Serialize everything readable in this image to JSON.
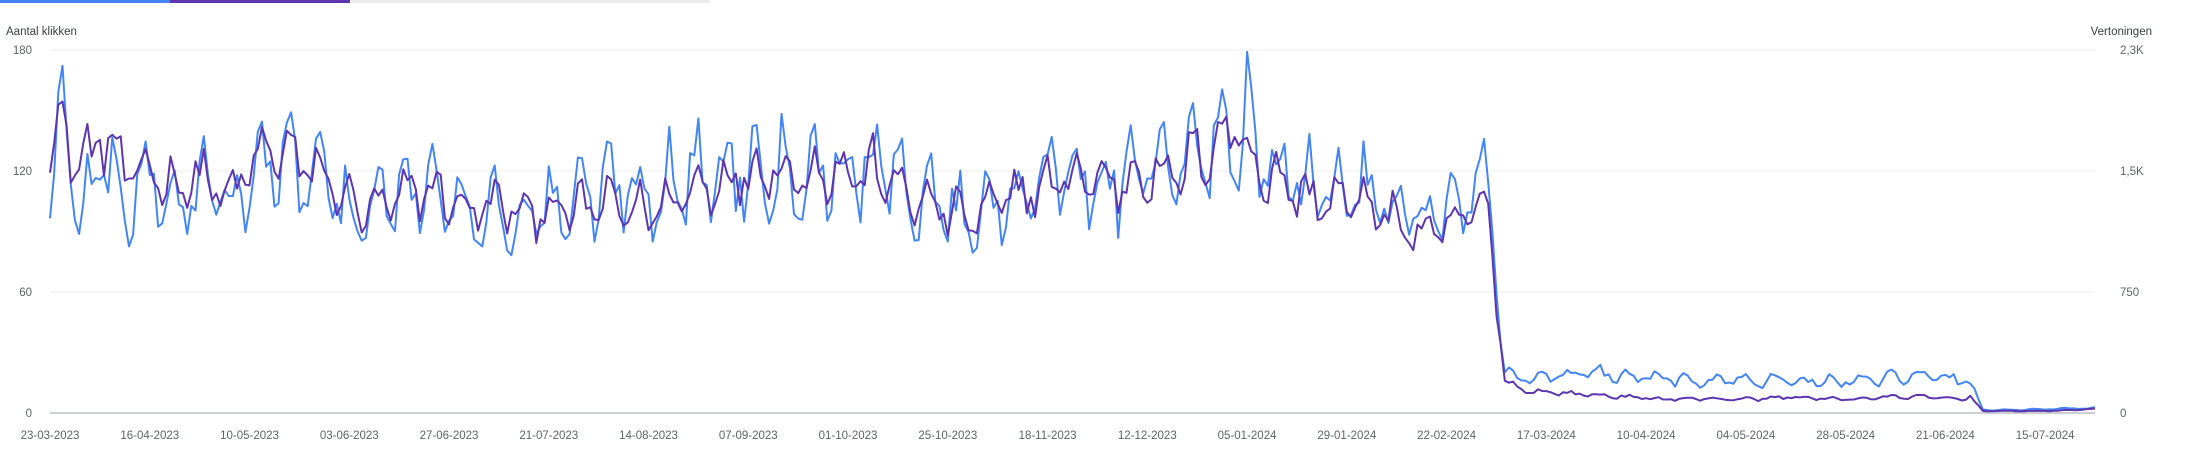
{
  "chart_data": {
    "type": "line",
    "ylabel_left": "Aantal klikken",
    "ylabel_right": "Vertoningen",
    "ylim_left": [
      0,
      180
    ],
    "ylim_right": [
      0,
      2300
    ],
    "yticks_left": [
      "0",
      "60",
      "120",
      "180"
    ],
    "yticks_right": [
      "0",
      "750",
      "1,5K",
      "2,3K"
    ],
    "x_tick_labels": [
      "23-03-2023",
      "16-04-2023",
      "10-05-2023",
      "03-06-2023",
      "27-06-2023",
      "21-07-2023",
      "14-08-2023",
      "07-09-2023",
      "01-10-2023",
      "25-10-2023",
      "18-11-2023",
      "12-12-2023",
      "05-01-2024",
      "29-01-2024",
      "22-02-2024",
      "17-03-2024",
      "10-04-2024",
      "04-05-2024",
      "28-05-2024",
      "21-06-2024",
      "15-07-2024"
    ],
    "x_start": "2023-03-23",
    "x_end": "2024-07-27",
    "grid": true,
    "series": [
      {
        "name": "Aantal klikken",
        "axis": "left",
        "color": "#5e35b1",
        "anchors": [
          [
            "2023-03-23",
            128
          ],
          [
            "2023-03-26",
            146
          ],
          [
            "2023-03-30",
            120
          ],
          [
            "2023-04-04",
            138
          ],
          [
            "2023-04-12",
            116
          ],
          [
            "2023-04-16",
            122
          ],
          [
            "2023-04-22",
            112
          ],
          [
            "2023-04-28",
            118
          ],
          [
            "2023-05-05",
            106
          ],
          [
            "2023-05-10",
            122
          ],
          [
            "2023-05-16",
            132
          ],
          [
            "2023-05-22",
            124
          ],
          [
            "2023-05-28",
            118
          ],
          [
            "2023-06-03",
            104
          ],
          [
            "2023-06-09",
            100
          ],
          [
            "2023-06-15",
            106
          ],
          [
            "2023-06-21",
            112
          ],
          [
            "2023-06-27",
            106
          ],
          [
            "2023-07-03",
            100
          ],
          [
            "2023-07-09",
            104
          ],
          [
            "2023-07-15",
            98
          ],
          [
            "2023-07-21",
            102
          ],
          [
            "2023-07-27",
            100
          ],
          [
            "2023-08-02",
            104
          ],
          [
            "2023-08-08",
            102
          ],
          [
            "2023-08-14",
            100
          ],
          [
            "2023-08-20",
            106
          ],
          [
            "2023-08-26",
            112
          ],
          [
            "2023-09-01",
            116
          ],
          [
            "2023-09-07",
            118
          ],
          [
            "2023-09-13",
            124
          ],
          [
            "2023-09-19",
            116
          ],
          [
            "2023-09-25",
            122
          ],
          [
            "2023-10-01",
            118
          ],
          [
            "2023-10-07",
            120
          ],
          [
            "2023-10-13",
            112
          ],
          [
            "2023-10-19",
            104
          ],
          [
            "2023-10-25",
            100
          ],
          [
            "2023-10-31",
            96
          ],
          [
            "2023-11-06",
            104
          ],
          [
            "2023-11-12",
            110
          ],
          [
            "2023-11-18",
            112
          ],
          [
            "2023-11-24",
            118
          ],
          [
            "2023-11-30",
            116
          ],
          [
            "2023-12-06",
            114
          ],
          [
            "2023-12-12",
            120
          ],
          [
            "2023-12-18",
            116
          ],
          [
            "2023-12-24",
            128
          ],
          [
            "2023-12-30",
            136
          ],
          [
            "2024-01-03",
            144
          ],
          [
            "2024-01-05",
            130
          ],
          [
            "2024-01-09",
            118
          ],
          [
            "2024-01-14",
            114
          ],
          [
            "2024-01-20",
            106
          ],
          [
            "2024-01-26",
            106
          ],
          [
            "2024-02-01",
            104
          ],
          [
            "2024-02-07",
            100
          ],
          [
            "2024-02-13",
            90
          ],
          [
            "2024-02-19",
            88
          ],
          [
            "2024-02-24",
            94
          ],
          [
            "2024-03-01",
            102
          ],
          [
            "2024-03-03",
            98
          ],
          [
            "2024-03-07",
            16
          ],
          [
            "2024-03-12",
            11
          ],
          [
            "2024-03-20",
            10
          ],
          [
            "2024-03-28",
            9
          ],
          [
            "2024-04-05",
            8
          ],
          [
            "2024-04-13",
            7
          ],
          [
            "2024-04-21",
            7
          ],
          [
            "2024-04-29",
            7
          ],
          [
            "2024-05-07",
            7
          ],
          [
            "2024-05-15",
            8
          ],
          [
            "2024-05-23",
            7
          ],
          [
            "2024-05-31",
            7
          ],
          [
            "2024-06-08",
            8
          ],
          [
            "2024-06-16",
            8
          ],
          [
            "2024-06-24",
            7
          ],
          [
            "2024-06-27",
            8
          ],
          [
            "2024-06-30",
            1
          ],
          [
            "2024-07-08",
            1
          ],
          [
            "2024-07-16",
            1
          ],
          [
            "2024-07-27",
            2
          ]
        ]
      },
      {
        "name": "Vertoningen",
        "axis": "right",
        "color": "#4285f4",
        "anchors": [
          [
            "2023-03-23",
            1220
          ],
          [
            "2023-03-26",
            1980
          ],
          [
            "2023-03-30",
            1200
          ],
          [
            "2023-04-04",
            1620
          ],
          [
            "2023-04-12",
            1300
          ],
          [
            "2023-04-16",
            1540
          ],
          [
            "2023-04-22",
            1280
          ],
          [
            "2023-04-28",
            1460
          ],
          [
            "2023-05-05",
            1300
          ],
          [
            "2023-05-10",
            1480
          ],
          [
            "2023-05-16",
            1600
          ],
          [
            "2023-05-22",
            1520
          ],
          [
            "2023-05-28",
            1480
          ],
          [
            "2023-06-03",
            1260
          ],
          [
            "2023-06-09",
            1300
          ],
          [
            "2023-06-15",
            1380
          ],
          [
            "2023-06-21",
            1420
          ],
          [
            "2023-06-27",
            1360
          ],
          [
            "2023-07-03",
            1300
          ],
          [
            "2023-07-09",
            1280
          ],
          [
            "2023-07-15",
            1240
          ],
          [
            "2023-07-21",
            1300
          ],
          [
            "2023-07-27",
            1320
          ],
          [
            "2023-08-02",
            1420
          ],
          [
            "2023-08-08",
            1460
          ],
          [
            "2023-08-14",
            1400
          ],
          [
            "2023-08-20",
            1480
          ],
          [
            "2023-08-26",
            1500
          ],
          [
            "2023-09-01",
            1540
          ],
          [
            "2023-09-07",
            1560
          ],
          [
            "2023-09-13",
            1600
          ],
          [
            "2023-09-19",
            1520
          ],
          [
            "2023-09-25",
            1560
          ],
          [
            "2023-10-01",
            1540
          ],
          [
            "2023-10-07",
            1580
          ],
          [
            "2023-10-13",
            1460
          ],
          [
            "2023-10-19",
            1380
          ],
          [
            "2023-10-25",
            1300
          ],
          [
            "2023-10-31",
            1220
          ],
          [
            "2023-11-06",
            1360
          ],
          [
            "2023-11-12",
            1440
          ],
          [
            "2023-11-18",
            1480
          ],
          [
            "2023-11-24",
            1540
          ],
          [
            "2023-11-30",
            1500
          ],
          [
            "2023-12-06",
            1480
          ],
          [
            "2023-12-12",
            1560
          ],
          [
            "2023-12-18",
            1520
          ],
          [
            "2023-12-24",
            1640
          ],
          [
            "2023-12-30",
            1680
          ],
          [
            "2024-01-03",
            1760
          ],
          [
            "2024-01-05",
            1980
          ],
          [
            "2024-01-09",
            1540
          ],
          [
            "2024-01-14",
            1480
          ],
          [
            "2024-01-20",
            1420
          ],
          [
            "2024-01-26",
            1440
          ],
          [
            "2024-02-01",
            1420
          ],
          [
            "2024-02-07",
            1380
          ],
          [
            "2024-02-13",
            1260
          ],
          [
            "2024-02-19",
            1240
          ],
          [
            "2024-02-24",
            1300
          ],
          [
            "2024-03-01",
            1420
          ],
          [
            "2024-03-03",
            1380
          ],
          [
            "2024-03-07",
            250
          ],
          [
            "2024-03-12",
            220
          ],
          [
            "2024-03-20",
            240
          ],
          [
            "2024-03-28",
            250
          ],
          [
            "2024-04-05",
            230
          ],
          [
            "2024-04-13",
            220
          ],
          [
            "2024-04-21",
            210
          ],
          [
            "2024-04-29",
            210
          ],
          [
            "2024-05-07",
            200
          ],
          [
            "2024-05-15",
            210
          ],
          [
            "2024-05-23",
            200
          ],
          [
            "2024-05-31",
            200
          ],
          [
            "2024-06-08",
            220
          ],
          [
            "2024-06-16",
            230
          ],
          [
            "2024-06-24",
            210
          ],
          [
            "2024-06-27",
            200
          ],
          [
            "2024-06-30",
            20
          ],
          [
            "2024-07-08",
            20
          ],
          [
            "2024-07-16",
            25
          ],
          [
            "2024-07-27",
            30
          ]
        ]
      }
    ]
  }
}
